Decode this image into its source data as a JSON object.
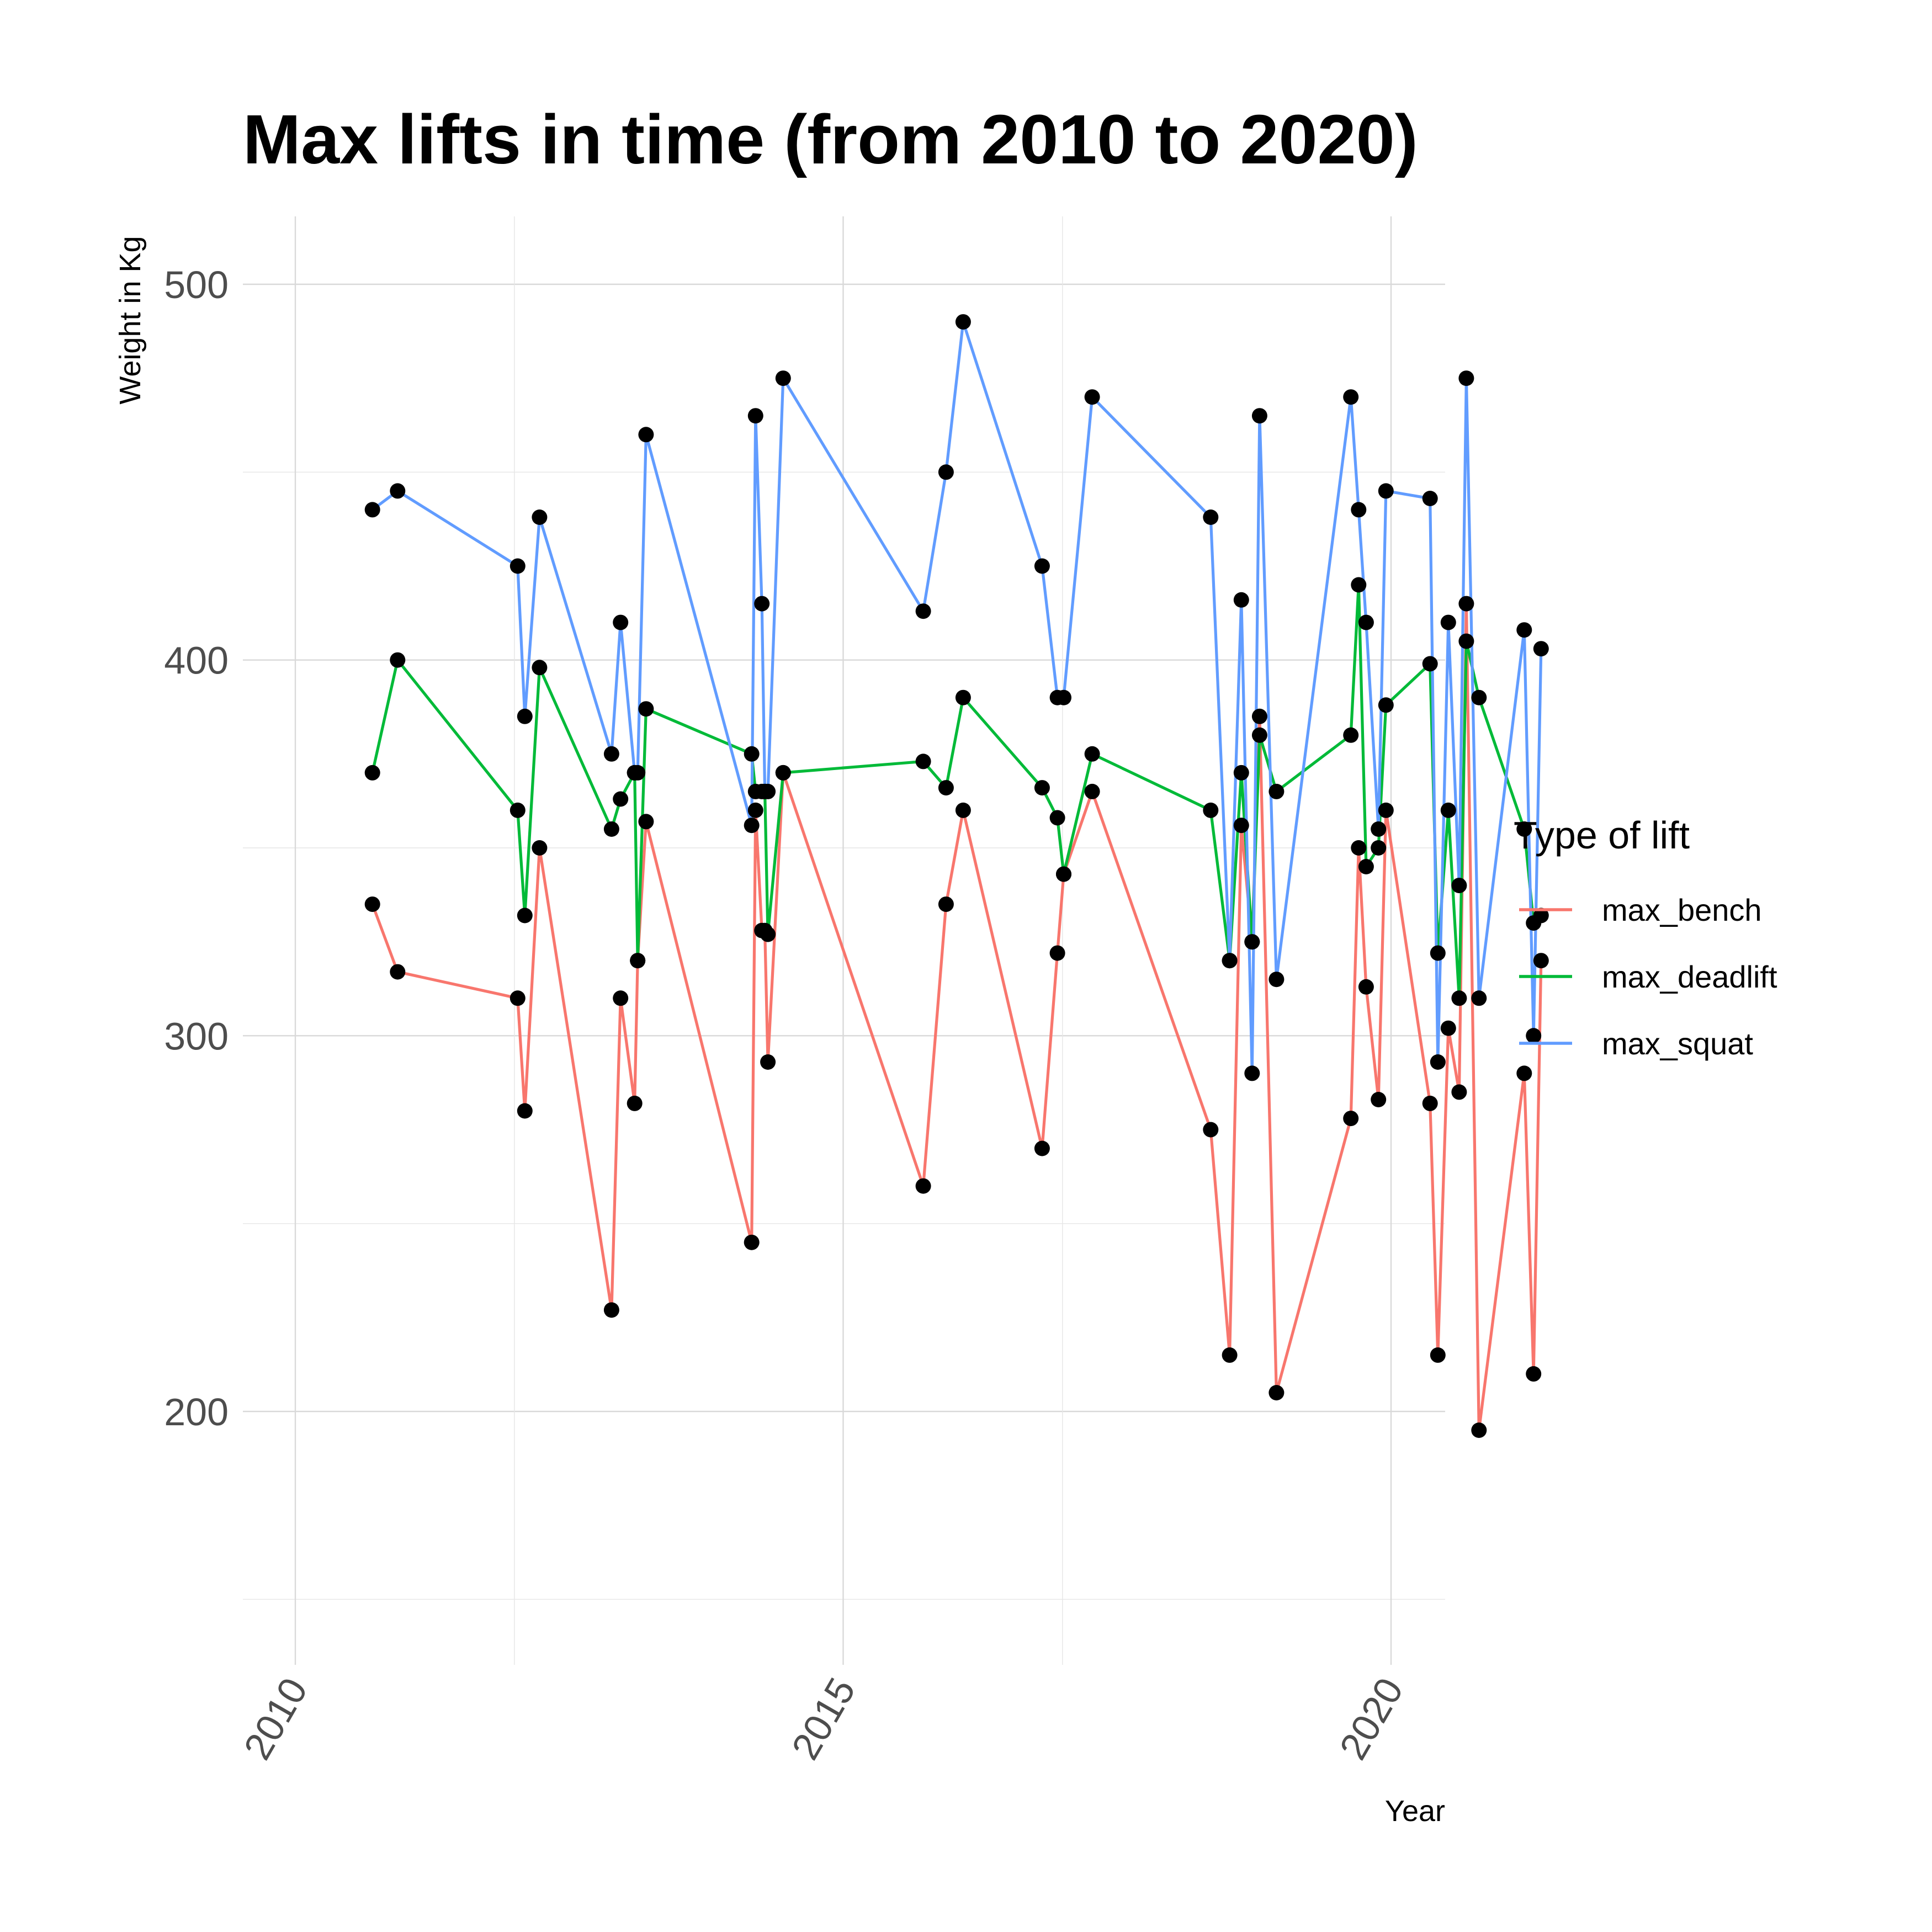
{
  "chart_data": {
    "type": "line",
    "title": "Max lifts in time (from 2010 to 2020)",
    "xlabel": "Year",
    "ylabel": "Weight in Kg",
    "xlim": [
      2010,
      2020
    ],
    "ylim": [
      150,
      510
    ],
    "x_ticks": [
      2010,
      2015,
      2020
    ],
    "y_ticks": [
      200,
      300,
      400,
      500
    ],
    "grid": true,
    "legend": {
      "title": "Type of lift",
      "position": "right"
    },
    "markers": {
      "color": "#000000"
    },
    "x_type": "date",
    "series": [
      {
        "name": "max_bench",
        "color": "#F8766D",
        "points": [
          [
            "2010-09-15",
            335
          ],
          [
            "2010-12-08",
            317
          ],
          [
            "2012-01-12",
            310
          ],
          [
            "2012-02-05",
            280
          ],
          [
            "2012-03-25",
            350
          ],
          [
            "2012-11-20",
            227
          ],
          [
            "2012-12-20",
            310
          ],
          [
            "2013-02-05",
            282
          ],
          [
            "2013-02-15",
            320
          ],
          [
            "2013-03-15",
            357
          ],
          [
            "2014-03-02",
            245
          ],
          [
            "2014-03-15",
            360
          ],
          [
            "2014-04-05",
            328
          ],
          [
            "2014-04-15",
            328
          ],
          [
            "2014-04-25",
            293
          ],
          [
            "2014-06-15",
            370
          ],
          [
            "2015-09-25",
            260
          ],
          [
            "2015-12-10",
            335
          ],
          [
            "2016-02-05",
            360
          ],
          [
            "2016-10-25",
            270
          ],
          [
            "2016-12-15",
            322
          ],
          [
            "2017-01-05",
            343
          ],
          [
            "2017-04-10",
            365
          ],
          [
            "2018-05-10",
            275
          ],
          [
            "2018-07-12",
            215
          ],
          [
            "2018-08-20",
            356
          ],
          [
            "2018-09-25",
            325
          ],
          [
            "2018-10-20",
            385
          ],
          [
            "2018-12-15",
            205
          ],
          [
            "2019-08-20",
            278
          ],
          [
            "2019-09-15",
            350
          ],
          [
            "2019-10-10",
            313
          ],
          [
            "2019-11-20",
            283
          ],
          [
            "2019-12-15",
            360
          ],
          [
            "2020-05-10",
            282
          ],
          [
            "2020-06-05",
            215
          ],
          [
            "2020-07-10",
            302
          ],
          [
            "2020-08-15",
            285
          ],
          [
            "2020-09-08",
            415
          ],
          [
            "2020-10-20",
            195
          ],
          [
            "2021-03-20",
            290
          ],
          [
            "2021-04-20",
            210
          ],
          [
            "2021-05-15",
            320
          ]
        ]
      },
      {
        "name": "max_deadlift",
        "color": "#00BA38",
        "points": [
          [
            "2010-09-15",
            370
          ],
          [
            "2010-12-08",
            400
          ],
          [
            "2012-01-12",
            360
          ],
          [
            "2012-02-05",
            332
          ],
          [
            "2012-03-25",
            398
          ],
          [
            "2012-11-20",
            355
          ],
          [
            "2012-12-20",
            363
          ],
          [
            "2013-02-05",
            370
          ],
          [
            "2013-02-15",
            320
          ],
          [
            "2013-03-15",
            387
          ],
          [
            "2014-03-02",
            375
          ],
          [
            "2014-03-15",
            365
          ],
          [
            "2014-04-05",
            365
          ],
          [
            "2014-04-15",
            365
          ],
          [
            "2014-04-25",
            327
          ],
          [
            "2014-06-15",
            370
          ],
          [
            "2015-09-25",
            373
          ],
          [
            "2015-12-10",
            366
          ],
          [
            "2016-02-05",
            390
          ],
          [
            "2016-10-25",
            366
          ],
          [
            "2016-12-15",
            358
          ],
          [
            "2017-01-05",
            343
          ],
          [
            "2017-04-10",
            375
          ],
          [
            "2018-05-10",
            360
          ],
          [
            "2018-07-12",
            320
          ],
          [
            "2018-08-20",
            370
          ],
          [
            "2018-09-25",
            325
          ],
          [
            "2018-10-20",
            380
          ],
          [
            "2018-12-15",
            365
          ],
          [
            "2019-08-20",
            380
          ],
          [
            "2019-09-15",
            420
          ],
          [
            "2019-10-10",
            345
          ],
          [
            "2019-11-20",
            350
          ],
          [
            "2019-12-15",
            388
          ],
          [
            "2020-05-10",
            399
          ],
          [
            "2020-06-05",
            322
          ],
          [
            "2020-07-10",
            360
          ],
          [
            "2020-08-15",
            310
          ],
          [
            "2020-09-08",
            405
          ],
          [
            "2020-10-20",
            390
          ],
          [
            "2021-03-20",
            355
          ],
          [
            "2021-04-20",
            330
          ],
          [
            "2021-05-15",
            332
          ]
        ]
      },
      {
        "name": "max_squat",
        "color": "#619CFF",
        "points": [
          [
            "2010-09-15",
            440
          ],
          [
            "2010-12-08",
            445
          ],
          [
            "2012-01-12",
            425
          ],
          [
            "2012-02-05",
            385
          ],
          [
            "2012-03-25",
            438
          ],
          [
            "2012-11-20",
            375
          ],
          [
            "2012-12-20",
            410
          ],
          [
            "2013-02-05",
            370
          ],
          [
            "2013-02-15",
            370
          ],
          [
            "2013-03-15",
            460
          ],
          [
            "2014-03-02",
            356
          ],
          [
            "2014-03-15",
            465
          ],
          [
            "2014-04-05",
            415
          ],
          [
            "2014-04-15",
            365
          ],
          [
            "2014-04-25",
            365
          ],
          [
            "2014-06-15",
            475
          ],
          [
            "2015-09-25",
            413
          ],
          [
            "2015-12-10",
            450
          ],
          [
            "2016-02-05",
            490
          ],
          [
            "2016-10-25",
            425
          ],
          [
            "2016-12-15",
            390
          ],
          [
            "2017-01-05",
            390
          ],
          [
            "2017-04-10",
            470
          ],
          [
            "2018-05-10",
            438
          ],
          [
            "2018-07-12",
            320
          ],
          [
            "2018-08-20",
            416
          ],
          [
            "2018-09-25",
            290
          ],
          [
            "2018-10-20",
            465
          ],
          [
            "2018-12-15",
            315
          ],
          [
            "2019-08-20",
            470
          ],
          [
            "2019-09-15",
            440
          ],
          [
            "2019-10-10",
            410
          ],
          [
            "2019-11-20",
            355
          ],
          [
            "2019-12-15",
            445
          ],
          [
            "2020-05-10",
            443
          ],
          [
            "2020-06-05",
            293
          ],
          [
            "2020-07-10",
            410
          ],
          [
            "2020-08-15",
            340
          ],
          [
            "2020-09-08",
            475
          ],
          [
            "2020-10-20",
            310
          ],
          [
            "2021-03-20",
            408
          ],
          [
            "2021-04-20",
            300
          ],
          [
            "2021-05-15",
            403
          ]
        ]
      }
    ]
  }
}
